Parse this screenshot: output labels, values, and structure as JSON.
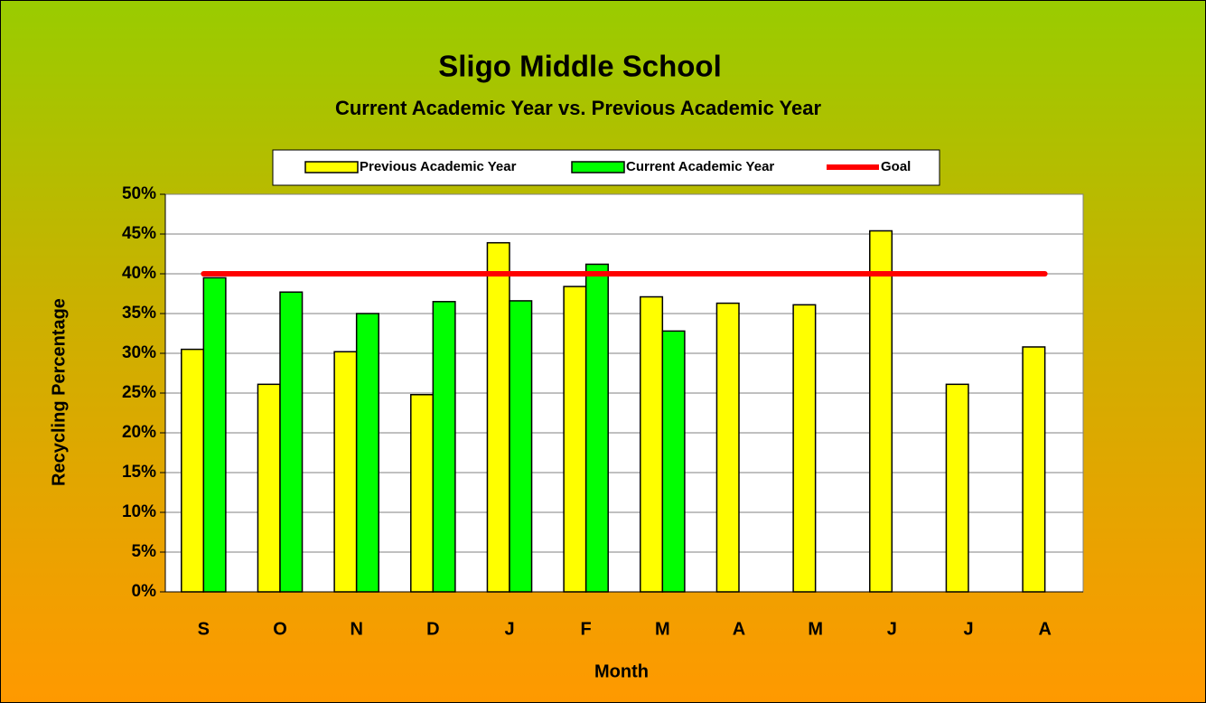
{
  "chart_data": {
    "type": "bar",
    "title": "Sligo Middle School",
    "subtitle": "Current Academic Year vs. Previous Academic Year",
    "x_label": "Month",
    "y_label": "Recycling Percentage",
    "categories": [
      "S",
      "O",
      "N",
      "D",
      "J",
      "F",
      "M",
      "A",
      "M",
      "J",
      "J",
      "A"
    ],
    "series": [
      {
        "name": "Previous Academic Year",
        "type": "bar",
        "color": "#ffff00",
        "values": [
          30.5,
          26.1,
          30.2,
          24.8,
          43.9,
          38.4,
          37.1,
          36.3,
          36.1,
          45.4,
          26.1,
          30.8
        ]
      },
      {
        "name": "Current Academic Year",
        "type": "bar",
        "color": "#00ff00",
        "values": [
          39.5,
          37.7,
          35.0,
          36.5,
          36.6,
          41.2,
          32.8,
          null,
          null,
          null,
          null,
          null
        ]
      },
      {
        "name": "Goal",
        "type": "line",
        "color": "#ff0000",
        "values": [
          40,
          40,
          40,
          40,
          40,
          40,
          40,
          40,
          40,
          40,
          40,
          40
        ]
      }
    ],
    "ylim": [
      0,
      50
    ],
    "yticks": [
      {
        "value": 0,
        "label": "0%"
      },
      {
        "value": 5,
        "label": "5%"
      },
      {
        "value": 10,
        "label": "10%"
      },
      {
        "value": 15,
        "label": "15%"
      },
      {
        "value": 20,
        "label": "20%"
      },
      {
        "value": 25,
        "label": "25%"
      },
      {
        "value": 30,
        "label": "30%"
      },
      {
        "value": 35,
        "label": "35%"
      },
      {
        "value": 40,
        "label": "40%"
      },
      {
        "value": 45,
        "label": "45%"
      },
      {
        "value": 50,
        "label": "50%"
      }
    ],
    "grid": true,
    "legend": "top"
  }
}
